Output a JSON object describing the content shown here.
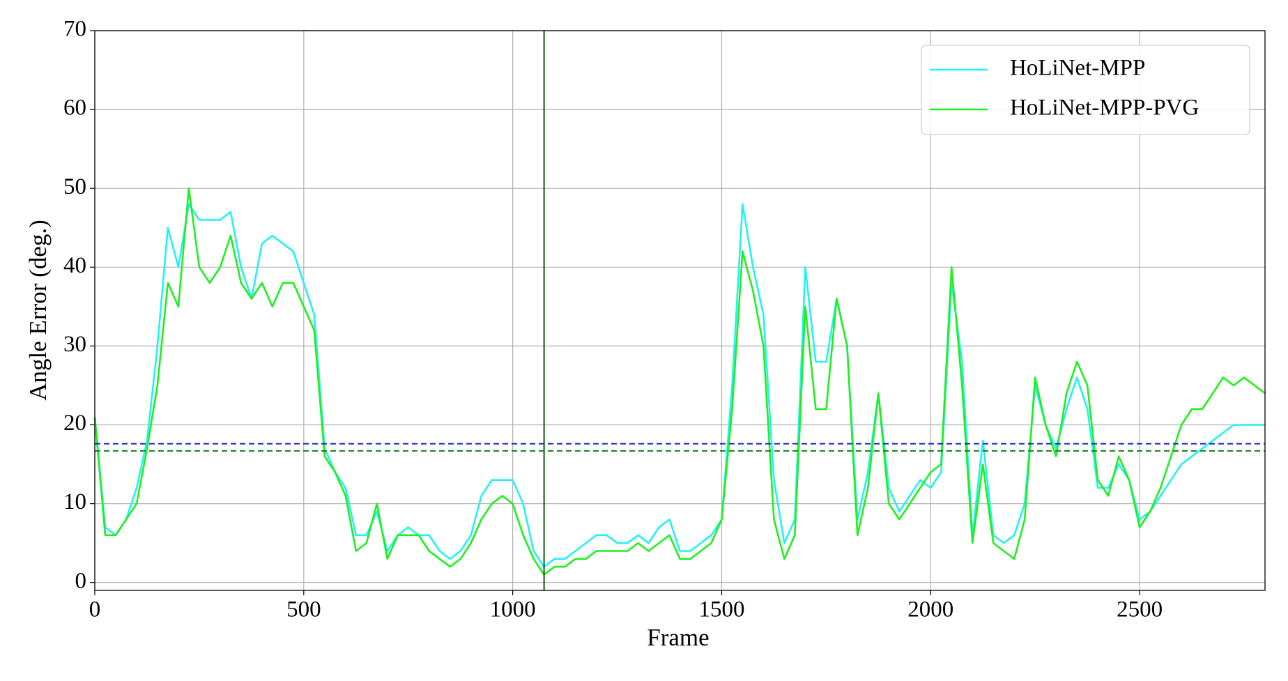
{
  "chart_data": {
    "type": "line",
    "xlabel": "Frame",
    "ylabel": "Angle Error (deg.)",
    "x": [
      0,
      25,
      50,
      75,
      100,
      125,
      150,
      175,
      200,
      225,
      250,
      275,
      300,
      325,
      350,
      375,
      400,
      425,
      450,
      475,
      500,
      525,
      550,
      575,
      600,
      625,
      650,
      675,
      700,
      725,
      750,
      775,
      800,
      825,
      850,
      875,
      900,
      925,
      950,
      975,
      1000,
      1025,
      1050,
      1075,
      1100,
      1125,
      1150,
      1175,
      1200,
      1225,
      1250,
      1275,
      1300,
      1325,
      1350,
      1375,
      1400,
      1425,
      1450,
      1475,
      1500,
      1525,
      1550,
      1575,
      1600,
      1625,
      1650,
      1675,
      1700,
      1725,
      1750,
      1775,
      1800,
      1825,
      1850,
      1875,
      1900,
      1925,
      1950,
      1975,
      2000,
      2025,
      2050,
      2075,
      2100,
      2125,
      2150,
      2175,
      2200,
      2225,
      2250,
      2275,
      2300,
      2325,
      2350,
      2375,
      2400,
      2425,
      2450,
      2475,
      2500,
      2525,
      2550,
      2575,
      2600,
      2625,
      2650,
      2675,
      2700,
      2725,
      2750,
      2775,
      2800
    ],
    "series": [
      {
        "name": "HoLiNet-MPP",
        "color": "#22f2f2",
        "values": [
          21,
          7,
          6,
          8,
          12,
          18,
          30,
          45,
          40,
          48,
          46,
          46,
          46,
          47,
          40,
          36,
          43,
          44,
          43,
          42,
          38,
          34,
          17,
          14,
          12,
          6,
          6,
          9,
          4,
          6,
          7,
          6,
          6,
          4,
          3,
          4,
          6,
          11,
          13,
          13,
          13,
          10,
          4,
          2,
          3,
          3,
          4,
          5,
          6,
          6,
          5,
          5,
          6,
          5,
          7,
          8,
          4,
          4,
          5,
          6,
          8,
          25,
          48,
          40,
          34,
          13,
          5,
          8,
          40,
          28,
          28,
          36,
          30,
          8,
          14,
          24,
          12,
          9,
          11,
          13,
          12,
          14,
          38,
          28,
          6,
          18,
          6,
          5,
          6,
          10,
          25,
          20,
          17,
          22,
          26,
          22,
          12,
          12,
          15,
          13,
          8,
          9,
          11,
          13,
          15,
          16,
          17,
          18,
          19,
          20,
          20,
          20,
          20
        ]
      },
      {
        "name": "HoLiNet-MPP-PVG",
        "color": "#1ef01e",
        "values": [
          21,
          6,
          6,
          8,
          10,
          17,
          25,
          38,
          35,
          50,
          40,
          38,
          40,
          44,
          38,
          36,
          38,
          35,
          38,
          38,
          35,
          32,
          16,
          14,
          11,
          4,
          5,
          10,
          3,
          6,
          6,
          6,
          4,
          3,
          2,
          3,
          5,
          8,
          10,
          11,
          10,
          6,
          3,
          1,
          2,
          2,
          3,
          3,
          4,
          4,
          4,
          4,
          5,
          4,
          5,
          6,
          3,
          3,
          4,
          5,
          8,
          22,
          42,
          37,
          30,
          8,
          3,
          6,
          35,
          22,
          22,
          36,
          30,
          6,
          12,
          24,
          10,
          8,
          10,
          12,
          14,
          15,
          40,
          25,
          5,
          15,
          5,
          4,
          3,
          8,
          26,
          20,
          16,
          24,
          28,
          25,
          13,
          11,
          16,
          13,
          7,
          9,
          12,
          16,
          20,
          22,
          22,
          24,
          26,
          25,
          26,
          25,
          24
        ]
      }
    ],
    "reference_lines": [
      {
        "value": 17.6,
        "color": "#1020c0"
      },
      {
        "value": 16.7,
        "color": "#108010"
      }
    ],
    "vline": {
      "value": 1075,
      "color": "#0a5a0a"
    },
    "xlim": [
      0,
      2800
    ],
    "xticks": [
      0,
      500,
      1000,
      1500,
      2000,
      2500
    ],
    "ylim": [
      -1,
      70
    ],
    "yticks": [
      0,
      10,
      20,
      30,
      40,
      50,
      60,
      70
    ],
    "grid": true,
    "legend": "upper right"
  }
}
